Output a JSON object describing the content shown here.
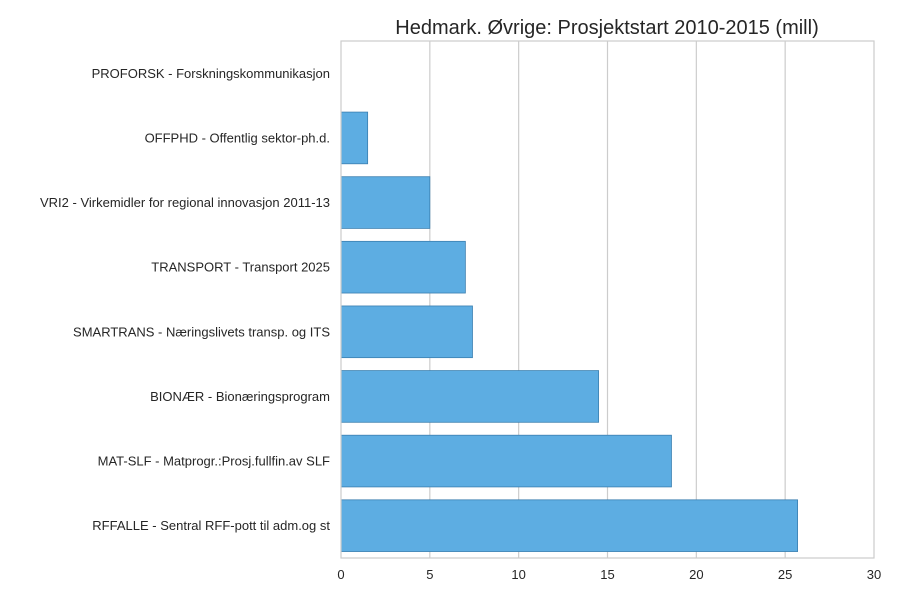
{
  "chart_data": {
    "type": "bar",
    "orientation": "horizontal",
    "title": "Hedmark. Øvrige: Prosjektstart 2010-2015 (mill)",
    "xlabel": "",
    "ylabel": "",
    "categories": [
      "PROFORSK - Forskningskommunikasjon",
      "OFFPHD - Offentlig sektor-ph.d.",
      "VRI2 - Virkemidler for regional innovasjon 2011-13",
      "TRANSPORT - Transport 2025",
      "SMARTRANS - Næringslivets transp. og ITS",
      "BIONÆR - Bionæringsprogram",
      "MAT-SLF - Matprogr.:Prosj.fullfin.av SLF",
      "RFFALLE - Sentral RFF-pott til adm.og st"
    ],
    "values": [
      0,
      1.5,
      5.0,
      7.0,
      7.4,
      14.5,
      18.6,
      25.7
    ],
    "xlim": [
      0,
      30
    ],
    "xticks": [
      "0",
      "5",
      "10",
      "15",
      "20",
      "25",
      "30"
    ],
    "grid": true,
    "bar_color": "#5DADE2",
    "bar_edge_color": "#3a7fb0",
    "grid_color": "#cccccc"
  }
}
